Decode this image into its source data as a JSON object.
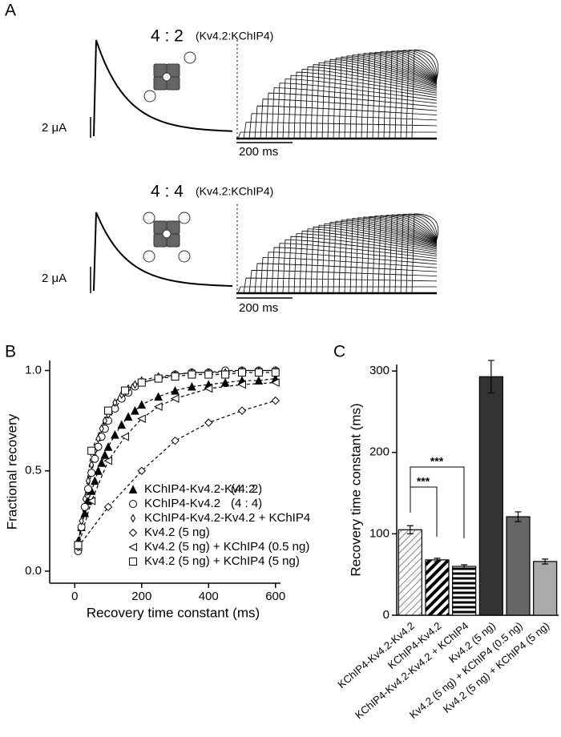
{
  "panel_a": {
    "label": "A",
    "traces": [
      {
        "ratio": "4 : 2",
        "subunits": "(Kv4.2:KChIP4)",
        "current_scale": "2 μA",
        "time_scale": "200 ms"
      },
      {
        "ratio": "4 : 4",
        "subunits": "(Kv4.2:KChIP4)",
        "current_scale": "2 μA",
        "time_scale": "200 ms"
      }
    ]
  },
  "chart_data": [
    {
      "type": "scatter",
      "label": "B",
      "x_label": "Recovery time constant (ms)",
      "y_label": "Fractional recovery",
      "xlim": [
        -75,
        615
      ],
      "ylim": [
        -0.06,
        1.05
      ],
      "xticks": [
        0,
        200,
        400,
        600
      ],
      "yticks": [
        {
          "value": 0,
          "label": "0.0"
        },
        {
          "value": 0.5,
          "label": "0.5"
        },
        {
          "value": 1,
          "label": "1.0"
        }
      ],
      "series": [
        {
          "name": "KChIP4-Kv4.2-Kv4.2",
          "ratio": "(4 : 2)",
          "marker": "triangle-filled",
          "color": "#000000",
          "x": [
            10,
            20,
            30,
            40,
            50,
            60,
            70,
            80,
            90,
            100,
            120,
            140,
            160,
            180,
            200,
            250,
            300,
            350,
            400,
            450,
            500,
            550,
            600
          ],
          "values": [
            0.15,
            0.22,
            0.29,
            0.35,
            0.4,
            0.45,
            0.5,
            0.54,
            0.58,
            0.62,
            0.68,
            0.73,
            0.77,
            0.8,
            0.83,
            0.87,
            0.9,
            0.92,
            0.93,
            0.94,
            0.95,
            0.95,
            0.96
          ]
        },
        {
          "name": "KChIP4-Kv4.2",
          "ratio": "(4 : 4)",
          "marker": "circle",
          "color": "#000000",
          "x": [
            10,
            20,
            30,
            40,
            50,
            60,
            70,
            80,
            90,
            100,
            120,
            140,
            160,
            180,
            200,
            250,
            300,
            350,
            400,
            450,
            500,
            550,
            600
          ],
          "values": [
            0.1,
            0.22,
            0.32,
            0.41,
            0.49,
            0.56,
            0.62,
            0.67,
            0.71,
            0.75,
            0.81,
            0.86,
            0.89,
            0.92,
            0.94,
            0.96,
            0.98,
            0.99,
            0.99,
            1.0,
            1.0,
            1.0,
            1.0
          ]
        },
        {
          "name": "KChIP4-Kv4.2-Kv4.2 + KChIP4",
          "marker": "diamond-small",
          "color": "#000000",
          "x": [
            10,
            20,
            30,
            40,
            50,
            60,
            70,
            80,
            90,
            100,
            120,
            140,
            160,
            180,
            200,
            250,
            300,
            350,
            400,
            450,
            500,
            550,
            600
          ],
          "values": [
            0.13,
            0.25,
            0.36,
            0.45,
            0.53,
            0.6,
            0.66,
            0.71,
            0.75,
            0.78,
            0.84,
            0.88,
            0.91,
            0.93,
            0.95,
            0.97,
            0.98,
            0.99,
            0.99,
            0.99,
            1.0,
            1.0,
            1.0
          ]
        },
        {
          "name": "Kv4.2 (5 ng)",
          "marker": "diamond",
          "color": "#000000",
          "x": [
            10,
            100,
            200,
            300,
            400,
            500,
            600
          ],
          "values": [
            0.12,
            0.32,
            0.5,
            0.65,
            0.74,
            0.8,
            0.85
          ]
        },
        {
          "name": "Kv4.2 (5 ng) + KChIP4 (0.5 ng)",
          "marker": "triangle-left",
          "color": "#000000",
          "x": [
            10,
            50,
            100,
            150,
            200,
            250,
            300,
            400,
            500,
            600
          ],
          "values": [
            0.12,
            0.35,
            0.55,
            0.67,
            0.76,
            0.82,
            0.86,
            0.91,
            0.93,
            0.94
          ]
        },
        {
          "name": "Kv4.2 (5 ng) + KChIP4 (5 ng)",
          "marker": "square",
          "color": "#000000",
          "x": [
            10,
            50,
            100,
            150,
            200,
            250,
            300,
            350,
            400,
            450,
            500,
            550,
            600
          ],
          "values": [
            0.13,
            0.6,
            0.8,
            0.9,
            0.94,
            0.96,
            0.97,
            0.98,
            0.98,
            0.98,
            0.99,
            0.99,
            0.99
          ]
        }
      ]
    },
    {
      "type": "bar",
      "label": "C",
      "y_label": "Recovery time constant (ms)",
      "categories": [
        "KChIP4-Kv4.2-Kv4.2",
        "KChIP4-Kv4.2",
        "KChIP4-Kv4.2-Kv4.2 + KChIP4",
        "Kv4.2 (5 ng)",
        "Kv4.2 (5 ng) + KChIP4 (0.5 ng)",
        "Kv4.2 (5 ng) + KChIP4 (5 ng)"
      ],
      "values": [
        105,
        68,
        60,
        293,
        121,
        66
      ],
      "errors": [
        5,
        2,
        2,
        20,
        6,
        3
      ],
      "colors": [
        "#ffffff",
        "#ffffff",
        "#ffffff",
        "#333333",
        "#666666",
        "#aaaaaa"
      ],
      "hatch": [
        "thin-diagonal",
        "thick-diagonal",
        "horizontal",
        "none",
        "none",
        "none"
      ],
      "ylim": [
        0,
        308
      ],
      "yticks": [
        0,
        100,
        200,
        300
      ],
      "annotations": [
        "***",
        "***"
      ]
    }
  ]
}
